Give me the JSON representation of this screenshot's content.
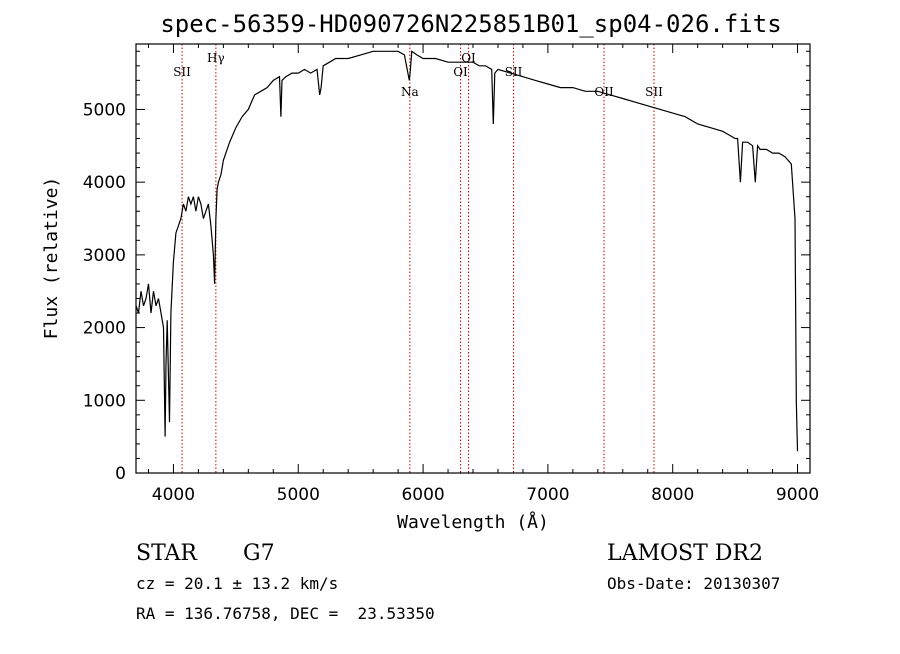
{
  "chart_data": {
    "type": "line",
    "title": "spec-56359-HD090726N225851B01_sp04-026.fits",
    "xlabel": "Wavelength (Å)",
    "ylabel": "Flux (relative)",
    "xlim": [
      3700,
      9100
    ],
    "ylim": [
      0,
      5900
    ],
    "x_ticks": [
      4000,
      5000,
      6000,
      7000,
      8000,
      9000
    ],
    "y_ticks": [
      0,
      1000,
      2000,
      3000,
      4000,
      5000
    ],
    "grid": false,
    "series": [
      {
        "x": [
          3700,
          3720,
          3740,
          3760,
          3780,
          3800,
          3820,
          3840,
          3860,
          3880,
          3900,
          3920,
          3933,
          3940,
          3950,
          3968,
          3980,
          4000,
          4020,
          4040,
          4060,
          4080,
          4100,
          4120,
          4140,
          4160,
          4180,
          4200,
          4220,
          4240,
          4260,
          4280,
          4300,
          4320,
          4330,
          4340,
          4350,
          4360,
          4380,
          4400,
          4450,
          4500,
          4550,
          4600,
          4650,
          4700,
          4750,
          4800,
          4850,
          4861,
          4870,
          4900,
          4950,
          5000,
          5050,
          5100,
          5150,
          5172,
          5183,
          5200,
          5250,
          5300,
          5400,
          5500,
          5600,
          5700,
          5800,
          5850,
          5890,
          5896,
          5910,
          5950,
          6000,
          6100,
          6200,
          6300,
          6400,
          6450,
          6500,
          6550,
          6563,
          6575,
          6600,
          6700,
          6800,
          6900,
          7000,
          7100,
          7200,
          7300,
          7400,
          7500,
          7600,
          7700,
          7800,
          7900,
          8000,
          8100,
          8200,
          8300,
          8400,
          8450,
          8500,
          8520,
          8542,
          8560,
          8600,
          8640,
          8662,
          8680,
          8700,
          8750,
          8800,
          8850,
          8900,
          8950,
          8980,
          8990,
          9000
        ],
        "y": [
          2300,
          2200,
          2500,
          2300,
          2400,
          2600,
          2200,
          2500,
          2300,
          2400,
          2200,
          2000,
          500,
          1500,
          2100,
          700,
          2200,
          2900,
          3300,
          3400,
          3500,
          3700,
          3600,
          3800,
          3700,
          3800,
          3600,
          3800,
          3700,
          3500,
          3600,
          3700,
          3400,
          3000,
          2600,
          3500,
          3900,
          4000,
          4100,
          4300,
          4550,
          4750,
          4900,
          5000,
          5200,
          5250,
          5300,
          5400,
          5450,
          4900,
          5400,
          5450,
          5500,
          5500,
          5550,
          5500,
          5550,
          5200,
          5300,
          5600,
          5650,
          5700,
          5700,
          5750,
          5800,
          5800,
          5800,
          5750,
          5400,
          5500,
          5800,
          5750,
          5700,
          5700,
          5650,
          5650,
          5650,
          5600,
          5600,
          5550,
          4800,
          5500,
          5550,
          5500,
          5450,
          5400,
          5350,
          5300,
          5300,
          5250,
          5250,
          5200,
          5150,
          5100,
          5050,
          5000,
          4950,
          4900,
          4800,
          4750,
          4700,
          4650,
          4600,
          4600,
          4000,
          4550,
          4550,
          4500,
          4000,
          4500,
          4450,
          4450,
          4400,
          4400,
          4350,
          4250,
          3500,
          1000,
          300
        ]
      }
    ],
    "annotations": [
      {
        "label": "SII",
        "x": 4069
      },
      {
        "label": "Hγ",
        "x": 4340
      },
      {
        "label": "Na",
        "x": 5894
      },
      {
        "label": "OI",
        "x": 6300
      },
      {
        "label": "OI",
        "x": 6364
      },
      {
        "label": "SII",
        "x": 6725
      },
      {
        "label": "OII",
        "x": 7450
      },
      {
        "label": "SII",
        "x": 7850
      }
    ]
  },
  "info": {
    "object_type": "STAR",
    "subclass": "G7",
    "survey": "LAMOST DR2",
    "redshift": "cz = 20.1 ± 13.2 km/s",
    "obs_date": "Obs-Date: 20130307",
    "coords": "RA = 136.76758, DEC =  23.53350"
  },
  "colors": {
    "spectrum": "#000000",
    "line_markers": "#cc0000",
    "axes": "#000000"
  }
}
